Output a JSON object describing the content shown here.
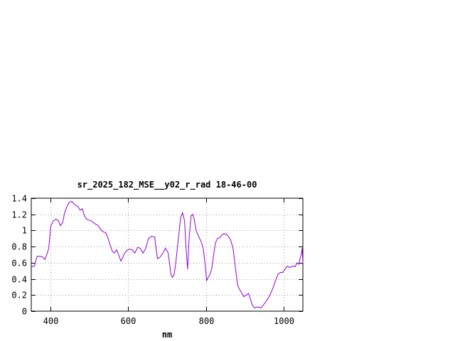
{
  "chart_data": {
    "type": "line",
    "title": "sr_2025_182_MSE__y02_r_rad 18-46-00",
    "xlabel": "nm",
    "ylabel": "",
    "xlim": [
      350,
      1050
    ],
    "ylim": [
      0,
      1.4
    ],
    "grid": true,
    "legend": "none",
    "x_ticks": [
      {
        "value": 400,
        "label": "400"
      },
      {
        "value": 600,
        "label": "600"
      },
      {
        "value": 800,
        "label": "800"
      },
      {
        "value": 1000,
        "label": "1000"
      }
    ],
    "y_ticks": [
      {
        "value": 0,
        "label": "0"
      },
      {
        "value": 0.2,
        "label": "0.2"
      },
      {
        "value": 0.4,
        "label": "0.4"
      },
      {
        "value": 0.6,
        "label": "0.6"
      },
      {
        "value": 0.8,
        "label": "0.8"
      },
      {
        "value": 1,
        "label": "1"
      },
      {
        "value": 1.2,
        "label": "1.2"
      },
      {
        "value": 1.4,
        "label": "1.4"
      }
    ],
    "colors": {
      "line": "#9400d3",
      "grid": "#a0a0a0",
      "axis": "#000000"
    },
    "series": [
      {
        "x": [
          350,
          358,
          365,
          372,
          380,
          385,
          390,
          395,
          400,
          407,
          414,
          420,
          425,
          431,
          436,
          442,
          448,
          454,
          460,
          465,
          470,
          476,
          482,
          487,
          493,
          498,
          504,
          510,
          515,
          520,
          525,
          531,
          537,
          542,
          548,
          553,
          559,
          564,
          570,
          575,
          581,
          586,
          591,
          596,
          603,
          610,
          617,
          624,
          631,
          638,
          645,
          652,
          660,
          668,
          675,
          682,
          689,
          696,
          703,
          710,
          714,
          718,
          722,
          727,
          731,
          735,
          740,
          745,
          749,
          753,
          757,
          762,
          766,
          770,
          774,
          778,
          782,
          788,
          793,
          798,
          802,
          806,
          810,
          815,
          820,
          825,
          830,
          836,
          842,
          848,
          853,
          858,
          864,
          870,
          876,
          882,
          888,
          893,
          898,
          904,
          910,
          915,
          920,
          925,
          931,
          936,
          942,
          947,
          952,
          958,
          963,
          969,
          974,
          980,
          986,
          992,
          998,
          1004,
          1010,
          1016,
          1020,
          1025,
          1030,
          1035,
          1040,
          1043,
          1046,
          1048,
          1050
        ],
        "y": [
          0.55,
          0.56,
          0.68,
          0.68,
          0.67,
          0.64,
          0.7,
          0.78,
          1.05,
          1.12,
          1.14,
          1.12,
          1.06,
          1.1,
          1.22,
          1.3,
          1.35,
          1.36,
          1.33,
          1.31,
          1.3,
          1.25,
          1.27,
          1.18,
          1.14,
          1.13,
          1.12,
          1.1,
          1.08,
          1.07,
          1.04,
          1.0,
          0.98,
          0.97,
          0.9,
          0.82,
          0.74,
          0.72,
          0.76,
          0.7,
          0.62,
          0.67,
          0.72,
          0.75,
          0.77,
          0.76,
          0.72,
          0.79,
          0.78,
          0.72,
          0.78,
          0.9,
          0.93,
          0.92,
          0.65,
          0.67,
          0.72,
          0.78,
          0.72,
          0.45,
          0.42,
          0.45,
          0.58,
          0.8,
          0.98,
          1.16,
          1.22,
          1.12,
          0.78,
          0.52,
          0.92,
          1.18,
          1.2,
          1.14,
          1.02,
          0.96,
          0.92,
          0.86,
          0.78,
          0.58,
          0.38,
          0.42,
          0.45,
          0.52,
          0.7,
          0.85,
          0.9,
          0.91,
          0.95,
          0.96,
          0.95,
          0.93,
          0.88,
          0.78,
          0.55,
          0.32,
          0.26,
          0.22,
          0.18,
          0.2,
          0.22,
          0.15,
          0.07,
          0.04,
          0.05,
          0.05,
          0.04,
          0.07,
          0.1,
          0.14,
          0.18,
          0.24,
          0.3,
          0.38,
          0.46,
          0.48,
          0.48,
          0.52,
          0.56,
          0.54,
          0.55,
          0.56,
          0.55,
          0.6,
          0.58,
          0.66,
          0.7,
          0.78,
          0.6
        ]
      }
    ]
  }
}
